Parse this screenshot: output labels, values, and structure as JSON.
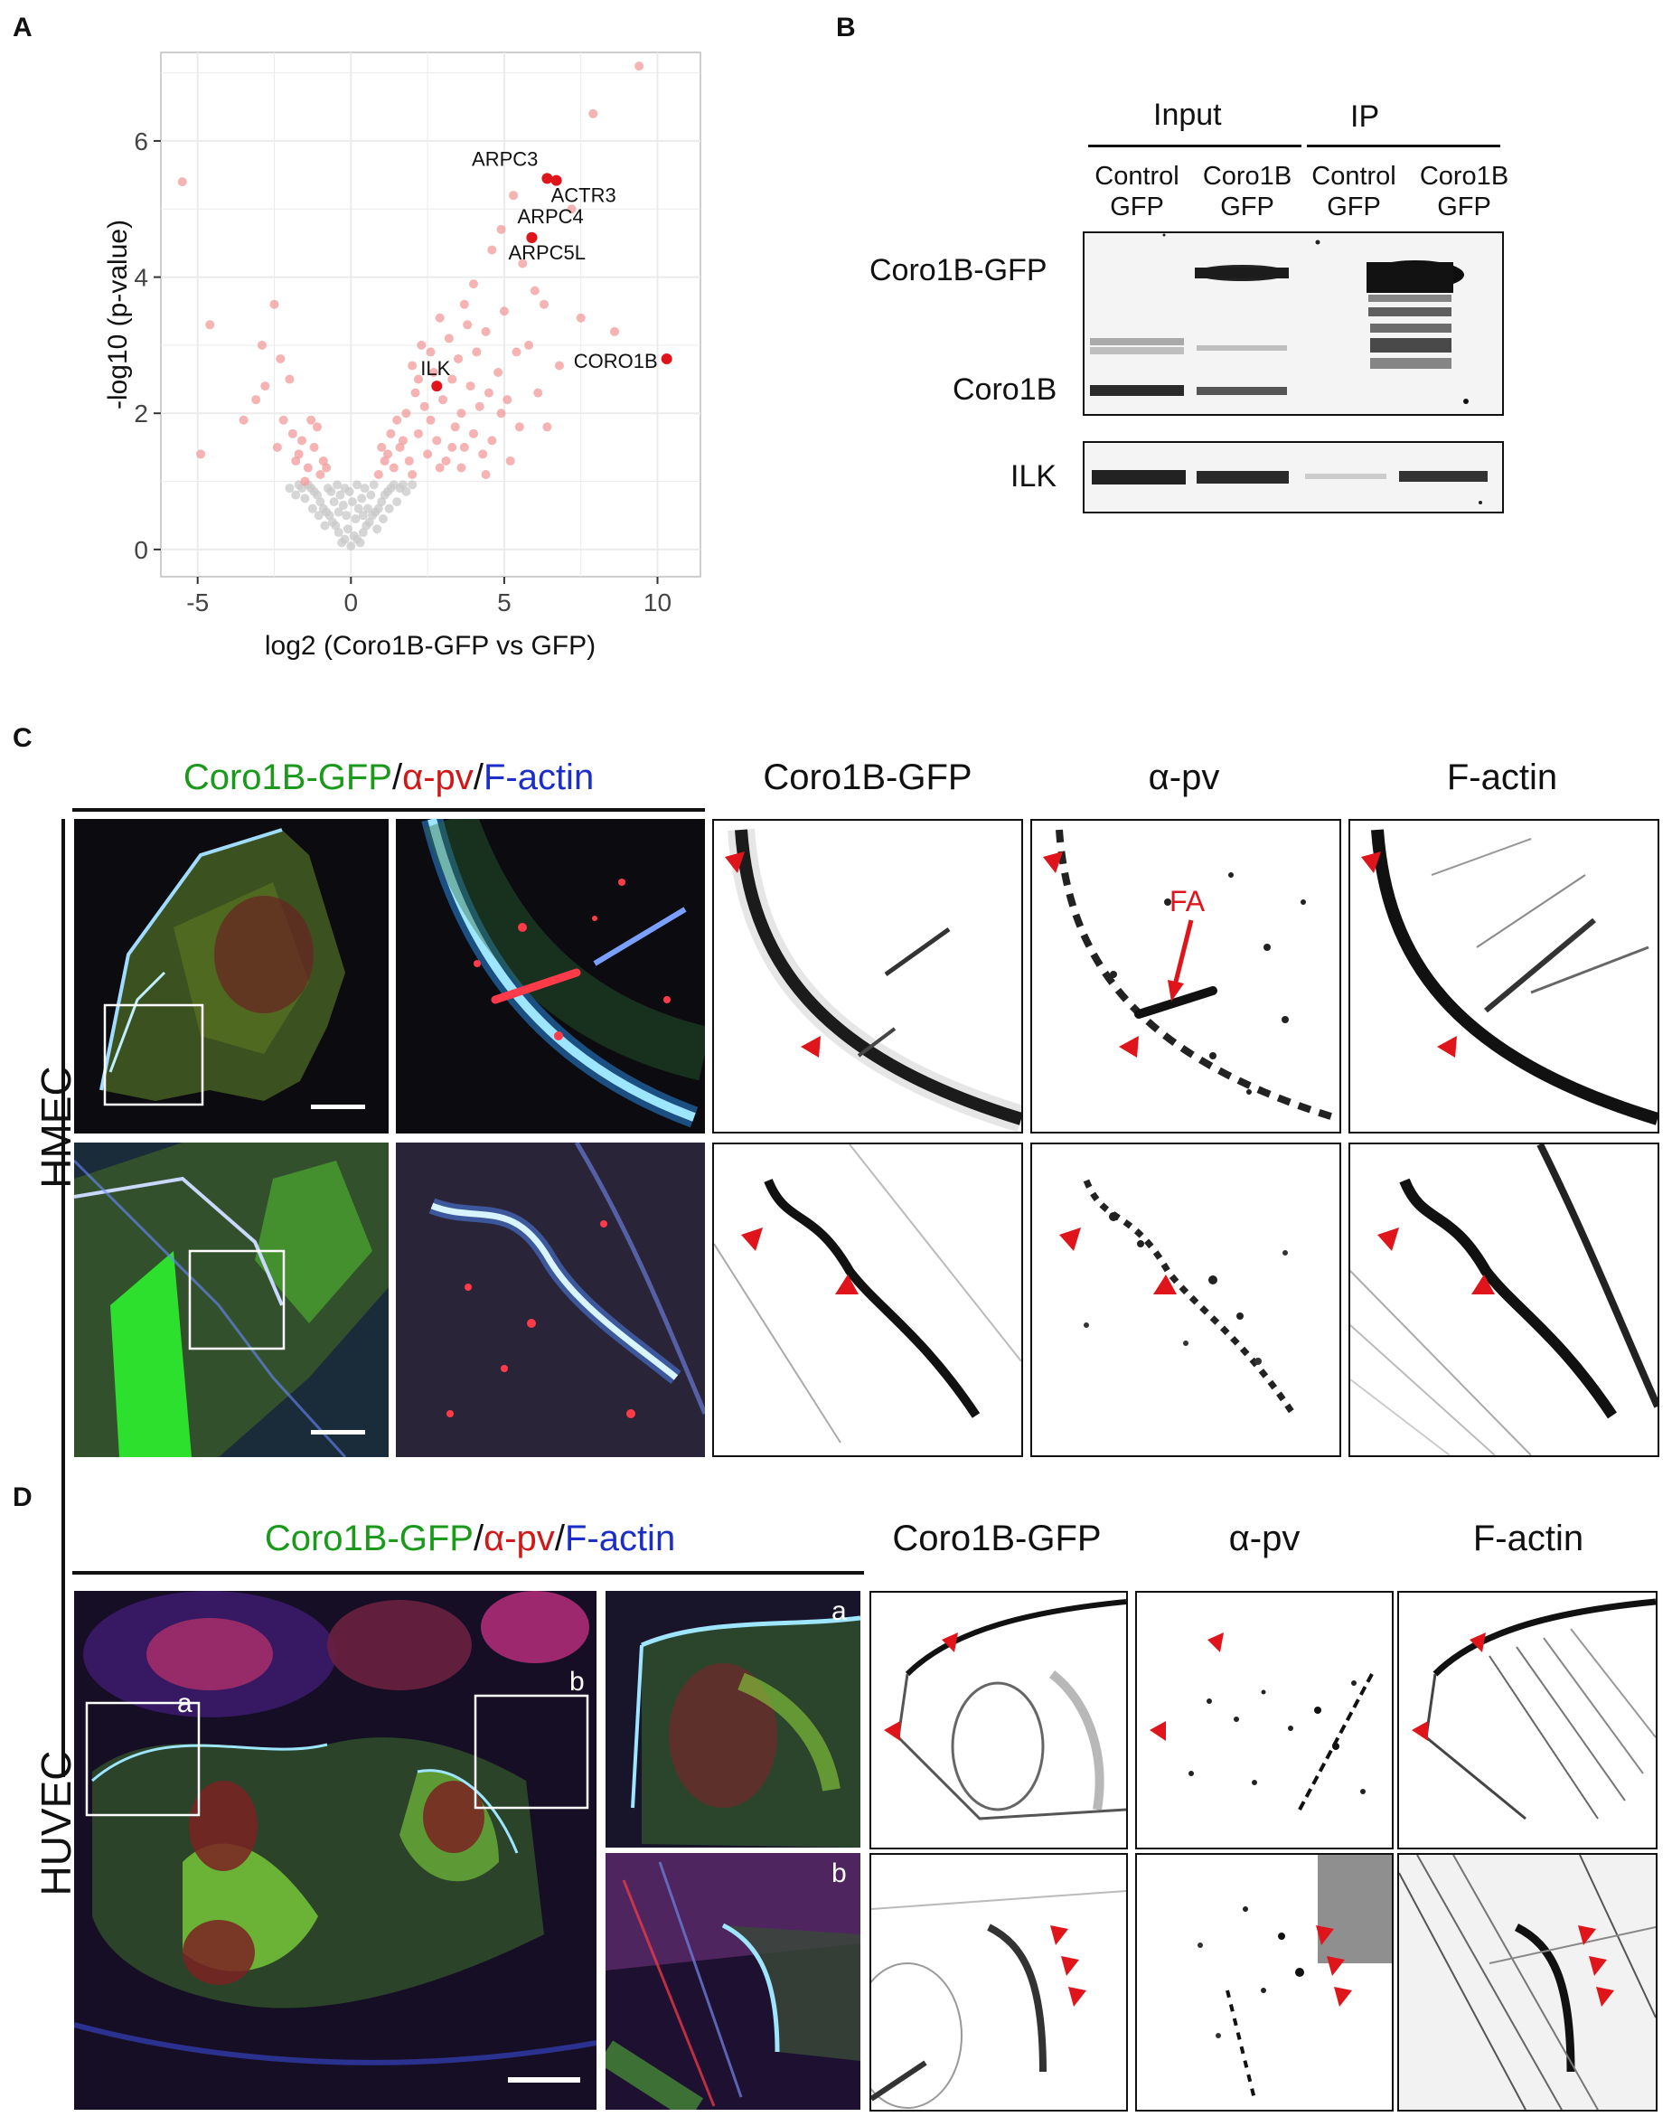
{
  "panels": {
    "a": "A",
    "b": "B",
    "c": "C",
    "d": "D"
  },
  "chart_data": {
    "type": "scatter",
    "xlabel": "log2 (Coro1B-GFP vs GFP)",
    "ylabel": "-log10 (p-value)",
    "xlim": [
      -6.2,
      11.4
    ],
    "ylim": [
      -0.4,
      7.3
    ],
    "xticks": [
      "-5",
      "0",
      "5",
      "10"
    ],
    "xtick_values": [
      -5,
      0,
      5,
      10
    ],
    "yticks": [
      "0",
      "2",
      "4",
      "6"
    ],
    "ytick_values": [
      0,
      2,
      4,
      6
    ],
    "grid": true,
    "colors": {
      "significant": "#f19a9a",
      "nonsignificant": "#c8c8c8",
      "highlight": "#e0151b",
      "panel_bg": "#ffffff",
      "gridline": "#ebebeb"
    },
    "labeled_points": [
      {
        "label": "ARPC3",
        "x": 6.4,
        "y": 5.45
      },
      {
        "label": "ACTR3",
        "x": 6.7,
        "y": 5.42
      },
      {
        "label": "ARPC4",
        "x": 5.9,
        "y": 4.58
      },
      {
        "label": "ARPC5L",
        "x": 5.9,
        "y": 4.58
      },
      {
        "label": "CORO1B",
        "x": 10.3,
        "y": 2.8
      },
      {
        "label": "ILK",
        "x": 2.8,
        "y": 2.4
      }
    ],
    "significant_points": [
      [
        9.4,
        7.1
      ],
      [
        7.9,
        6.4
      ],
      [
        -5.5,
        5.4
      ],
      [
        5.3,
        5.2
      ],
      [
        4.9,
        4.7
      ],
      [
        7.2,
        5.0
      ],
      [
        8.6,
        3.2
      ],
      [
        -4.6,
        3.3
      ],
      [
        -2.9,
        3.0
      ],
      [
        -2.5,
        3.6
      ],
      [
        -2.3,
        2.8
      ],
      [
        -2.8,
        2.4
      ],
      [
        -3.1,
        2.2
      ],
      [
        -2.0,
        2.5
      ],
      [
        -3.5,
        1.9
      ],
      [
        -4.9,
        1.4
      ],
      [
        -2.2,
        1.9
      ],
      [
        -1.9,
        1.7
      ],
      [
        -1.7,
        1.4
      ],
      [
        -1.4,
        1.2
      ],
      [
        -1.6,
        1.6
      ],
      [
        -1.2,
        1.5
      ],
      [
        -1.0,
        1.1
      ],
      [
        -1.3,
        1.9
      ],
      [
        -1.8,
        1.3
      ],
      [
        -0.9,
        1.3
      ],
      [
        -2.4,
        1.5
      ],
      [
        -1.1,
        1.8
      ],
      [
        1.4,
        1.2
      ],
      [
        1.6,
        1.5
      ],
      [
        1.9,
        1.3
      ],
      [
        2.2,
        1.7
      ],
      [
        2.5,
        1.4
      ],
      [
        2.8,
        1.6
      ],
      [
        3.1,
        1.3
      ],
      [
        3.4,
        1.8
      ],
      [
        3.7,
        1.5
      ],
      [
        4.0,
        1.7
      ],
      [
        4.3,
        1.4
      ],
      [
        4.6,
        1.6
      ],
      [
        1.8,
        2.0
      ],
      [
        2.1,
        2.3
      ],
      [
        2.4,
        2.1
      ],
      [
        2.7,
        2.6
      ],
      [
        3.0,
        2.2
      ],
      [
        3.3,
        2.5
      ],
      [
        3.6,
        2.0
      ],
      [
        3.9,
        2.4
      ],
      [
        4.2,
        2.1
      ],
      [
        4.5,
        2.3
      ],
      [
        1.5,
        1.9
      ],
      [
        2.0,
        2.7
      ],
      [
        2.3,
        3.0
      ],
      [
        2.6,
        2.9
      ],
      [
        3.2,
        3.1
      ],
      [
        3.5,
        2.8
      ],
      [
        3.8,
        3.3
      ],
      [
        4.1,
        2.9
      ],
      [
        4.4,
        3.2
      ],
      [
        4.8,
        2.6
      ],
      [
        5.1,
        2.2
      ],
      [
        5.4,
        2.9
      ],
      [
        5.8,
        3.0
      ],
      [
        6.0,
        3.8
      ],
      [
        4.0,
        3.9
      ],
      [
        4.6,
        4.4
      ],
      [
        5.6,
        4.2
      ],
      [
        6.3,
        3.6
      ],
      [
        5.0,
        3.5
      ],
      [
        3.7,
        3.6
      ],
      [
        2.9,
        3.4
      ],
      [
        2.2,
        2.5
      ],
      [
        1.7,
        1.6
      ],
      [
        1.2,
        1.4
      ],
      [
        1.3,
        1.7
      ],
      [
        2.6,
        1.9
      ],
      [
        3.3,
        1.5
      ],
      [
        4.9,
        2.0
      ],
      [
        5.5,
        1.8
      ],
      [
        6.1,
        2.3
      ],
      [
        6.8,
        2.7
      ],
      [
        7.5,
        3.4
      ],
      [
        1.1,
        1.3
      ],
      [
        0.9,
        1.1
      ],
      [
        1.0,
        1.5
      ],
      [
        2.0,
        1.1
      ],
      [
        2.9,
        1.2
      ],
      [
        3.6,
        1.2
      ],
      [
        4.4,
        1.1
      ],
      [
        5.2,
        1.3
      ],
      [
        6.4,
        1.8
      ],
      [
        -0.8,
        1.2
      ],
      [
        -1.5,
        1.0
      ]
    ],
    "nonsignificant_points": [
      [
        0.0,
        0.05
      ],
      [
        -0.2,
        0.15
      ],
      [
        0.2,
        0.15
      ],
      [
        -0.4,
        0.25
      ],
      [
        0.4,
        0.25
      ],
      [
        -0.6,
        0.4
      ],
      [
        0.6,
        0.4
      ],
      [
        -0.8,
        0.55
      ],
      [
        0.8,
        0.55
      ],
      [
        -1.0,
        0.7
      ],
      [
        1.0,
        0.7
      ],
      [
        -1.2,
        0.85
      ],
      [
        1.2,
        0.85
      ],
      [
        -1.4,
        0.95
      ],
      [
        1.4,
        0.95
      ],
      [
        -0.3,
        0.1
      ],
      [
        0.3,
        0.1
      ],
      [
        -0.5,
        0.35
      ],
      [
        0.5,
        0.35
      ],
      [
        -0.7,
        0.5
      ],
      [
        0.7,
        0.5
      ],
      [
        -0.9,
        0.6
      ],
      [
        0.9,
        0.6
      ],
      [
        -1.1,
        0.8
      ],
      [
        1.1,
        0.8
      ],
      [
        -1.3,
        0.9
      ],
      [
        1.3,
        0.9
      ],
      [
        -1.6,
        0.9
      ],
      [
        1.6,
        0.9
      ],
      [
        0.1,
        0.2
      ],
      [
        -0.1,
        0.3
      ],
      [
        0.15,
        0.45
      ],
      [
        -0.15,
        0.5
      ],
      [
        0.25,
        0.6
      ],
      [
        -0.25,
        0.65
      ],
      [
        0.35,
        0.75
      ],
      [
        -0.35,
        0.8
      ],
      [
        0.45,
        0.9
      ],
      [
        -0.45,
        0.95
      ],
      [
        0.55,
        0.6
      ],
      [
        -0.55,
        0.7
      ],
      [
        0.65,
        0.8
      ],
      [
        -0.65,
        0.85
      ],
      [
        0.75,
        0.95
      ],
      [
        -0.75,
        0.9
      ],
      [
        1.7,
        0.95
      ],
      [
        -1.7,
        0.95
      ],
      [
        1.5,
        0.7
      ],
      [
        -1.5,
        0.75
      ],
      [
        1.8,
        0.85
      ],
      [
        -1.8,
        0.8
      ],
      [
        2.0,
        0.95
      ],
      [
        -2.0,
        0.9
      ],
      [
        0.05,
        0.7
      ],
      [
        -0.05,
        0.85
      ],
      [
        0.2,
        0.95
      ],
      [
        -0.2,
        0.9
      ],
      [
        0.85,
        0.3
      ],
      [
        -0.85,
        0.35
      ],
      [
        1.05,
        0.45
      ],
      [
        -1.05,
        0.5
      ],
      [
        1.25,
        0.6
      ],
      [
        -1.25,
        0.6
      ],
      [
        0.4,
        0.5
      ],
      [
        -0.4,
        0.55
      ]
    ]
  },
  "panel_b": {
    "group_input": "Input",
    "group_ip": "IP",
    "lanes": [
      {
        "line1": "Control",
        "line2": "GFP"
      },
      {
        "line1": "Coro1B",
        "line2": "GFP"
      },
      {
        "line1": "Control",
        "line2": "GFP"
      },
      {
        "line1": "Coro1B",
        "line2": "GFP"
      }
    ],
    "row_labels": [
      "Coro1B-GFP",
      "Coro1B",
      "ILK"
    ]
  },
  "panel_c": {
    "merge_title": {
      "part1": "Coro1B-GFP",
      "sep1": "/",
      "part2": "α-pv",
      "sep2": "/",
      "part3": "F-actin"
    },
    "channel_titles": [
      "Coro1B-GFP",
      "α-pv",
      "F-actin"
    ],
    "row_label": "HMEC",
    "annotation": "FA",
    "colors": {
      "arrow": "#e0151b"
    }
  },
  "panel_d": {
    "merge_title": {
      "part1": "Coro1B-GFP",
      "sep1": "/",
      "part2": "α-pv",
      "sep2": "/",
      "part3": "F-actin"
    },
    "channel_titles": [
      "Coro1B-GFP",
      "α-pv",
      "F-actin"
    ],
    "row_label": "HUVEC",
    "inset_labels": [
      "a",
      "b"
    ]
  }
}
